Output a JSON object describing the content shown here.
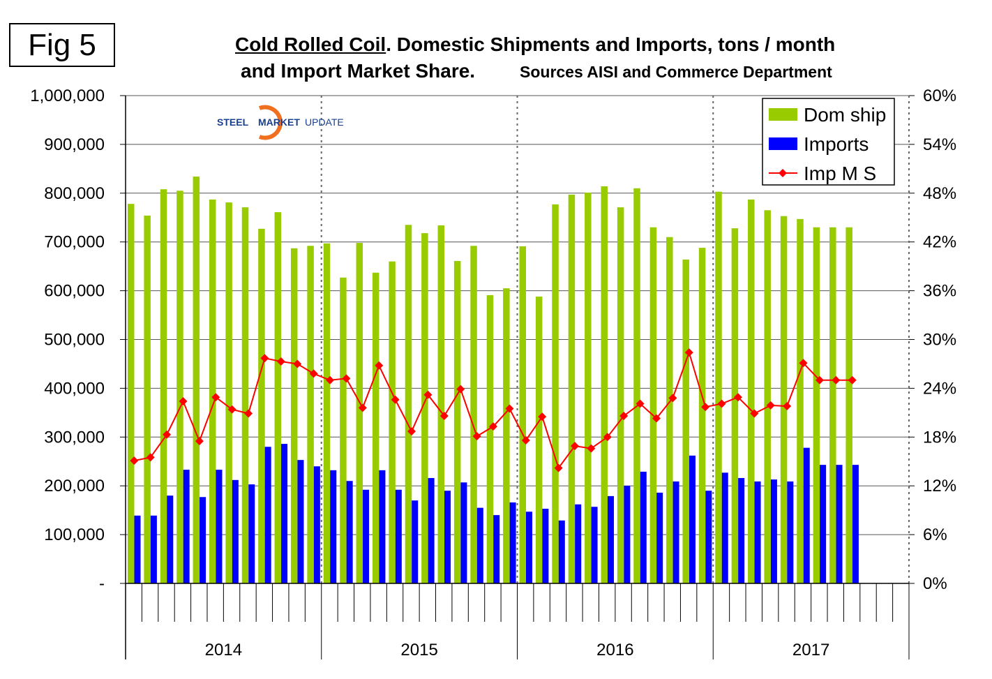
{
  "figure_label": "Fig 5",
  "logo_text": {
    "part1": "STEEL",
    "part2": "MARKET",
    "part3": "UPDATE"
  },
  "colors": {
    "dom": "#99cc00",
    "imp": "#0000ff",
    "ms": "#ff0000"
  },
  "chart_data": {
    "type": "bar+line",
    "title": {
      "underlined": "Cold Rolled Coil",
      "rest": ". Domestic Shipments and Imports, tons / month",
      "line2": "and Import  Market Share.",
      "sources": "Sources AISI and Commerce Department"
    },
    "years": [
      "2014",
      "2015",
      "2016",
      "2017"
    ],
    "months_per_year": 12,
    "y_left": {
      "range": [
        0,
        1000000
      ],
      "ticks": [
        "-",
        "100,000",
        "200,000",
        "300,000",
        "400,000",
        "500,000",
        "600,000",
        "700,000",
        "800,000",
        "900,000",
        "1,000,000"
      ]
    },
    "y_right": {
      "range": [
        0,
        60
      ],
      "ticks": [
        "0%",
        "6%",
        "12%",
        "18%",
        "24%",
        "30%",
        "36%",
        "42%",
        "48%",
        "54%",
        "60%"
      ]
    },
    "legend": {
      "placement": "top-right",
      "entries": [
        "Dom ship",
        "Imports",
        "Imp M S"
      ]
    },
    "series": [
      {
        "name": "Dom ship",
        "type": "bar",
        "values": [
          778000,
          754000,
          808000,
          805000,
          834000,
          787000,
          781000,
          771000,
          727000,
          761000,
          687000,
          692000,
          697000,
          627000,
          698000,
          637000,
          660000,
          735000,
          718000,
          734000,
          661000,
          692000,
          591000,
          605000,
          691000,
          588000,
          777000,
          797000,
          801000,
          814000,
          771000,
          810000,
          730000,
          710000,
          664000,
          688000,
          803000,
          728000,
          787000,
          765000,
          753000,
          747000,
          730000,
          730000,
          730000
        ]
      },
      {
        "name": "Imports",
        "type": "bar",
        "values": [
          139000,
          139000,
          180000,
          233000,
          177000,
          233000,
          212000,
          203000,
          280000,
          286000,
          253000,
          240000,
          232000,
          210000,
          192000,
          232000,
          192000,
          170000,
          216000,
          190000,
          207000,
          155000,
          140000,
          166000,
          147000,
          153000,
          129000,
          162000,
          157000,
          179000,
          200000,
          229000,
          186000,
          209000,
          262000,
          190000,
          227000,
          216000,
          209000,
          213000,
          209000,
          278000,
          243000,
          243000,
          243000
        ]
      },
      {
        "name": "Imp M S",
        "type": "line",
        "axis": "right",
        "values": [
          15.1,
          15.5,
          18.3,
          22.4,
          17.5,
          22.9,
          21.4,
          20.9,
          27.7,
          27.3,
          27.0,
          25.8,
          25.0,
          25.2,
          21.6,
          26.8,
          22.6,
          18.7,
          23.2,
          20.6,
          23.9,
          18.1,
          19.3,
          21.5,
          17.6,
          20.5,
          14.2,
          16.9,
          16.6,
          18.0,
          20.6,
          22.1,
          20.3,
          22.8,
          28.4,
          21.7,
          22.1,
          22.9,
          20.9,
          21.9,
          21.8,
          27.1,
          25.0,
          25.0,
          25.0
        ]
      }
    ]
  }
}
